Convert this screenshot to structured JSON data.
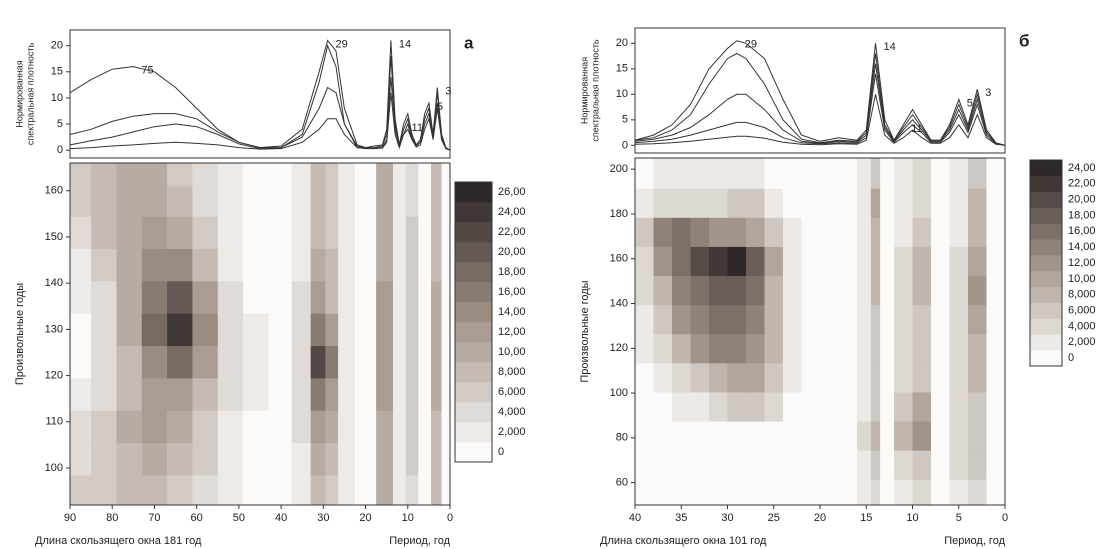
{
  "chart_data": [
    {
      "type": "line",
      "panel_label": "а",
      "ylabel": [
        "Нормированная",
        "спектральная плотность"
      ],
      "xlim": [
        90,
        0
      ],
      "ylim": [
        -1.5,
        23
      ],
      "yticks": [
        0,
        5,
        10,
        15,
        20
      ],
      "peak_labels": [
        75,
        29,
        14,
        11,
        5,
        3
      ],
      "x": [
        90,
        85,
        80,
        75,
        70,
        65,
        60,
        55,
        50,
        45,
        40,
        35,
        31,
        29,
        27,
        25,
        22,
        20,
        18,
        16,
        15,
        14,
        13,
        12,
        11,
        10,
        9,
        8,
        7,
        6,
        5,
        4,
        3,
        2,
        1,
        0
      ],
      "series": [
        {
          "color": "#333333",
          "values": [
            11,
            13.5,
            15.5,
            16,
            15,
            12,
            8,
            4,
            1.5,
            0.5,
            0.5,
            3,
            13,
            20,
            16,
            5,
            0.5,
            0.5,
            0.8,
            1,
            4,
            21,
            6,
            1,
            3,
            4,
            2,
            1,
            2,
            6,
            8,
            3,
            12,
            3,
            0.5,
            0
          ]
        },
        {
          "color": "#333333",
          "values": [
            3,
            4,
            5.5,
            6.5,
            7,
            7,
            6,
            3.5,
            1.5,
            0.5,
            0.8,
            4,
            15,
            21,
            19,
            8,
            1,
            0.5,
            0.5,
            0.8,
            3,
            18,
            5,
            1,
            5,
            7,
            3,
            1,
            2,
            7,
            9,
            3,
            11,
            3,
            0.5,
            0
          ]
        },
        {
          "color": "#333333",
          "values": [
            1,
            1.8,
            2.5,
            3.5,
            4.5,
            5,
            4.5,
            3,
            1.2,
            0.3,
            0.5,
            2.5,
            8,
            12,
            11,
            5,
            0.8,
            0.4,
            0.4,
            0.5,
            2,
            14,
            4,
            0.8,
            4,
            6,
            2.5,
            0.8,
            1.5,
            5,
            7,
            2.5,
            9,
            2.5,
            0.4,
            0
          ]
        },
        {
          "color": "#333333",
          "values": [
            0.3,
            0.5,
            0.8,
            1,
            1.3,
            1.5,
            1.3,
            1,
            0.5,
            0.2,
            0.3,
            1.5,
            4,
            6,
            6,
            3,
            0.5,
            0.3,
            0.3,
            0.4,
            1.5,
            11,
            3,
            0.5,
            3,
            5,
            2,
            0.6,
            1,
            4,
            6,
            2,
            8,
            2,
            0.3,
            0
          ]
        }
      ]
    },
    {
      "type": "contour",
      "xlabel": "Длина скользящего окна 181 год",
      "xlabel_right": "Период, год",
      "ylabel": "Произвольные годы",
      "xlim": [
        90,
        0
      ],
      "xticks": [
        90,
        80,
        70,
        60,
        50,
        40,
        30,
        20,
        10,
        0
      ],
      "ylim": [
        92,
        166
      ],
      "yticks": [
        100,
        110,
        120,
        130,
        140,
        150,
        160
      ],
      "colormap": [
        "#fbfaf8",
        "#a39489",
        "#2e2727"
      ],
      "colorbar_ticks": [
        0,
        {
          "value": 2,
          "label": "2,000"
        },
        {
          "value": 4,
          "label": "4,000"
        },
        {
          "value": 6,
          "label": "6,000"
        },
        {
          "value": 8,
          "label": "8,000"
        },
        {
          "value": 10,
          "label": "10,00"
        },
        {
          "value": 12,
          "label": "12,00"
        },
        {
          "value": 14,
          "label": "14,00"
        },
        {
          "value": 16,
          "label": "16,00"
        },
        {
          "value": 18,
          "label": "18,00"
        },
        {
          "value": 20,
          "label": "20,00"
        },
        {
          "value": 22,
          "label": "22,00"
        },
        {
          "value": 24,
          "label": "24,00"
        },
        {
          "value": 26,
          "label": "26,00"
        }
      ],
      "x": [
        88,
        82,
        76,
        70,
        64,
        58,
        52,
        46,
        40,
        35,
        31,
        28,
        25,
        20,
        15,
        12,
        9,
        6,
        3,
        1
      ],
      "y": [
        95,
        102,
        109,
        116,
        123,
        130,
        137,
        144,
        151,
        158,
        164
      ],
      "z": [
        [
          6,
          7,
          8,
          8,
          7,
          4,
          2,
          1,
          1,
          3,
          8,
          6,
          2,
          0,
          10,
          2,
          5,
          1,
          8,
          1
        ],
        [
          5,
          7,
          9,
          10,
          9,
          6,
          2,
          1,
          1,
          3,
          10,
          8,
          2,
          0,
          11,
          2,
          6,
          1,
          9,
          1
        ],
        [
          4,
          7,
          10,
          12,
          11,
          7,
          3,
          1,
          1,
          4,
          12,
          10,
          3,
          0,
          11,
          3,
          6,
          1,
          9,
          1
        ],
        [
          2,
          5,
          9,
          13,
          13,
          9,
          4,
          2,
          1,
          4,
          16,
          12,
          3,
          0,
          12,
          3,
          7,
          1,
          10,
          1
        ],
        [
          1,
          4,
          9,
          15,
          18,
          12,
          5,
          2,
          1,
          5,
          22,
          16,
          3,
          0,
          12,
          3,
          7,
          1,
          10,
          1
        ],
        [
          1,
          4,
          10,
          18,
          24,
          14,
          5,
          2,
          1,
          5,
          16,
          12,
          3,
          0,
          12,
          3,
          7,
          1,
          10,
          1
        ],
        [
          2,
          5,
          11,
          17,
          20,
          12,
          4,
          1,
          1,
          4,
          12,
          9,
          3,
          0,
          12,
          3,
          7,
          1,
          10,
          1
        ],
        [
          3,
          6,
          11,
          14,
          14,
          9,
          3,
          1,
          1,
          3,
          10,
          8,
          2,
          0,
          11,
          2,
          6,
          1,
          9,
          1
        ],
        [
          5,
          8,
          11,
          12,
          10,
          6,
          2,
          1,
          1,
          3,
          9,
          7,
          2,
          0,
          11,
          2,
          6,
          1,
          9,
          1
        ],
        [
          6,
          9,
          11,
          11,
          8,
          5,
          2,
          1,
          1,
          3,
          8,
          6,
          2,
          0,
          10,
          2,
          5,
          1,
          8,
          1
        ],
        [
          6,
          8,
          10,
          10,
          7,
          4,
          2,
          1,
          1,
          3,
          8,
          6,
          2,
          0,
          10,
          2,
          5,
          1,
          8,
          1
        ]
      ]
    },
    {
      "type": "line",
      "panel_label": "б",
      "ylabel": [
        "Нормированная",
        "спектральная плотность"
      ],
      "xlim": [
        40,
        0
      ],
      "ylim": [
        -1.5,
        23
      ],
      "yticks": [
        0,
        5,
        10,
        15,
        20
      ],
      "peak_labels": [
        29,
        14,
        11,
        5,
        3
      ],
      "x": [
        40,
        38,
        36,
        34,
        32,
        30,
        29,
        28,
        26,
        24,
        22,
        20,
        18,
        16,
        15,
        14,
        13,
        12,
        11,
        10,
        9,
        8,
        7,
        6,
        5,
        4,
        3,
        2,
        1,
        0
      ],
      "series": [
        {
          "color": "#333333",
          "values": [
            1,
            2,
            4,
            8,
            15,
            19,
            20.5,
            20,
            17,
            9,
            2,
            0.8,
            1.5,
            1,
            3,
            20,
            5,
            1,
            4,
            7,
            4,
            1,
            1,
            4,
            9,
            4,
            11,
            3,
            0.5,
            0
          ]
        },
        {
          "color": "#333333",
          "values": [
            1,
            1.5,
            3,
            6,
            12,
            17,
            18,
            17,
            12,
            5,
            1.2,
            0.5,
            1,
            0.8,
            2.5,
            18,
            4,
            1,
            3.5,
            6,
            3.5,
            1,
            1,
            3.5,
            8,
            3.5,
            10,
            3,
            0.5,
            0
          ]
        },
        {
          "color": "#333333",
          "values": [
            0.8,
            1.2,
            2,
            3.5,
            6,
            9,
            10,
            10,
            7,
            3,
            0.8,
            0.4,
            0.8,
            0.6,
            2,
            16,
            3.5,
            0.8,
            3,
            5,
            3,
            0.8,
            0.8,
            3,
            7,
            3,
            9,
            2.5,
            0.4,
            0
          ]
        },
        {
          "color": "#333333",
          "values": [
            0.5,
            0.8,
            1.2,
            2,
            3,
            4,
            4.5,
            4.5,
            3.5,
            1.5,
            0.5,
            0.3,
            0.5,
            0.4,
            1.5,
            14,
            3,
            0.6,
            2.5,
            4,
            2.5,
            0.6,
            0.6,
            2.5,
            6,
            2.5,
            8,
            2,
            0.3,
            0
          ]
        },
        {
          "color": "#333333",
          "values": [
            0.2,
            0.3,
            0.5,
            0.8,
            1.2,
            1.6,
            1.8,
            1.8,
            1.4,
            0.6,
            0.2,
            0.1,
            0.3,
            0.2,
            1,
            10,
            2,
            0.4,
            1.5,
            3,
            1.5,
            0.4,
            0.4,
            1.5,
            4,
            1.5,
            6,
            1.5,
            0.2,
            0
          ]
        }
      ]
    },
    {
      "type": "contour",
      "xlabel": "Длина скользящего окна 101 год",
      "xlabel_right": "Период, год",
      "ylabel": "Произвольные годы",
      "xlim": [
        40,
        0
      ],
      "xticks": [
        40,
        35,
        30,
        25,
        20,
        15,
        10,
        5,
        0
      ],
      "ylim": [
        50,
        205
      ],
      "yticks": [
        60,
        80,
        100,
        120,
        140,
        160,
        180,
        200
      ],
      "colormap": [
        "#fbfaf8",
        "#a39489",
        "#2e2727"
      ],
      "colorbar_ticks": [
        0,
        {
          "value": 2,
          "label": "2,000"
        },
        {
          "value": 4,
          "label": "4,000"
        },
        {
          "value": 6,
          "label": "6,000"
        },
        {
          "value": 8,
          "label": "8,000"
        },
        {
          "value": 10,
          "label": "10,00"
        },
        {
          "value": 12,
          "label": "12,00"
        },
        {
          "value": 14,
          "label": "14,00"
        },
        {
          "value": 16,
          "label": "16,00"
        },
        {
          "value": 18,
          "label": "18,00"
        },
        {
          "value": 20,
          "label": "20,00"
        },
        {
          "value": 22,
          "label": "22,00"
        },
        {
          "value": 24,
          "label": "24,00"
        }
      ],
      "x": [
        39,
        37,
        35,
        33,
        31,
        29,
        27,
        25,
        23,
        21,
        19,
        17,
        15,
        14,
        13,
        11,
        9,
        7,
        5,
        3,
        1
      ],
      "y": [
        55,
        68,
        81,
        94,
        107,
        120,
        133,
        146,
        159,
        172,
        185,
        198
      ],
      "z": [
        [
          0,
          0,
          0,
          0,
          1,
          1,
          1,
          0,
          0,
          0,
          0,
          0,
          2,
          4,
          1,
          2,
          4,
          1,
          3,
          4,
          0
        ],
        [
          0,
          0,
          0,
          0,
          0,
          0,
          0,
          0,
          0,
          0,
          0,
          0,
          3,
          6,
          1,
          5,
          7,
          1,
          4,
          6,
          0
        ],
        [
          0,
          0,
          0,
          0,
          0,
          1,
          1,
          0,
          0,
          0,
          0,
          0,
          4,
          8,
          1,
          8,
          12,
          1,
          4,
          7,
          0
        ],
        [
          0,
          1,
          2,
          3,
          4,
          6,
          7,
          4,
          1,
          0,
          0,
          0,
          3,
          7,
          1,
          6,
          10,
          1,
          4,
          7,
          0
        ],
        [
          1,
          3,
          5,
          7,
          9,
          11,
          10,
          6,
          2,
          0,
          0,
          0,
          3,
          7,
          1,
          4,
          6,
          1,
          5,
          8,
          0
        ],
        [
          2,
          5,
          9,
          12,
          14,
          15,
          13,
          8,
          3,
          1,
          0,
          0,
          3,
          7,
          1,
          4,
          6,
          1,
          5,
          9,
          0
        ],
        [
          3,
          7,
          12,
          15,
          17,
          17,
          15,
          9,
          3,
          1,
          0,
          0,
          3,
          7,
          1,
          4,
          7,
          1,
          5,
          10,
          0
        ],
        [
          4,
          9,
          14,
          17,
          18,
          18,
          16,
          9,
          3,
          1,
          0,
          0,
          3,
          8,
          1,
          4,
          8,
          1,
          5,
          12,
          0
        ],
        [
          5,
          12,
          17,
          20,
          23,
          24,
          18,
          10,
          3,
          1,
          0,
          0,
          3,
          8,
          1,
          4,
          8,
          1,
          4,
          10,
          0
        ],
        [
          6,
          14,
          17,
          15,
          13,
          12,
          10,
          6,
          2,
          1,
          0,
          0,
          3,
          9,
          1,
          3,
          6,
          1,
          3,
          8,
          0
        ],
        [
          2,
          4,
          5,
          5,
          5,
          6,
          6,
          3,
          1,
          0,
          0,
          0,
          3,
          10,
          1,
          3,
          5,
          1,
          3,
          9,
          0
        ],
        [
          1,
          2,
          2,
          2,
          2,
          3,
          2,
          1,
          0,
          0,
          0,
          0,
          2,
          7,
          1,
          2,
          4,
          1,
          2,
          7,
          0
        ]
      ]
    }
  ]
}
